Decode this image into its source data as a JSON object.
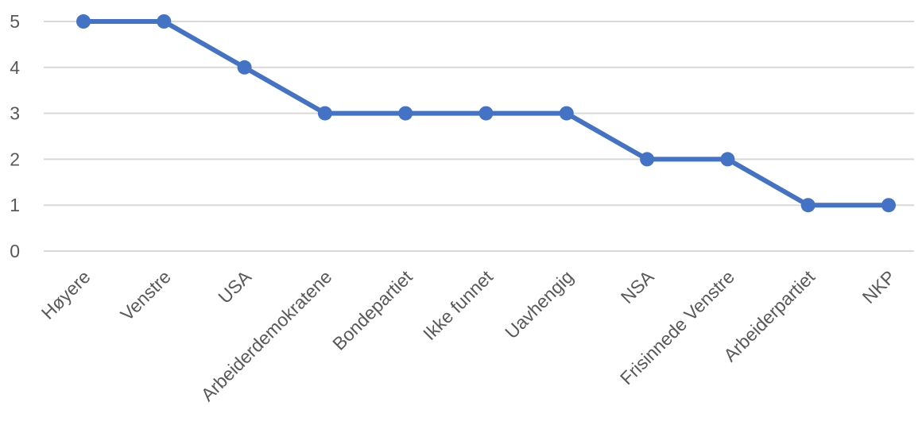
{
  "chart_data": {
    "type": "line",
    "title": "",
    "xlabel": "",
    "ylabel": "",
    "categories": [
      "Høyere",
      "Venstre",
      "USA",
      "Arbeiderdemokratene",
      "Bondepartiet",
      "Ikke funnet",
      "Uavhengig",
      "NSA",
      "Frisinnede Venstre",
      "Arbeiderpartiet",
      "NKP"
    ],
    "series": [
      {
        "values": [
          5,
          5,
          4,
          3,
          3,
          3,
          3,
          2,
          2,
          1,
          1
        ],
        "color": "#4472c4"
      }
    ],
    "ylim": [
      0,
      5
    ],
    "yticks": [
      "0",
      "1",
      "2",
      "3",
      "4",
      "5"
    ],
    "grid": true,
    "legend": "none"
  }
}
